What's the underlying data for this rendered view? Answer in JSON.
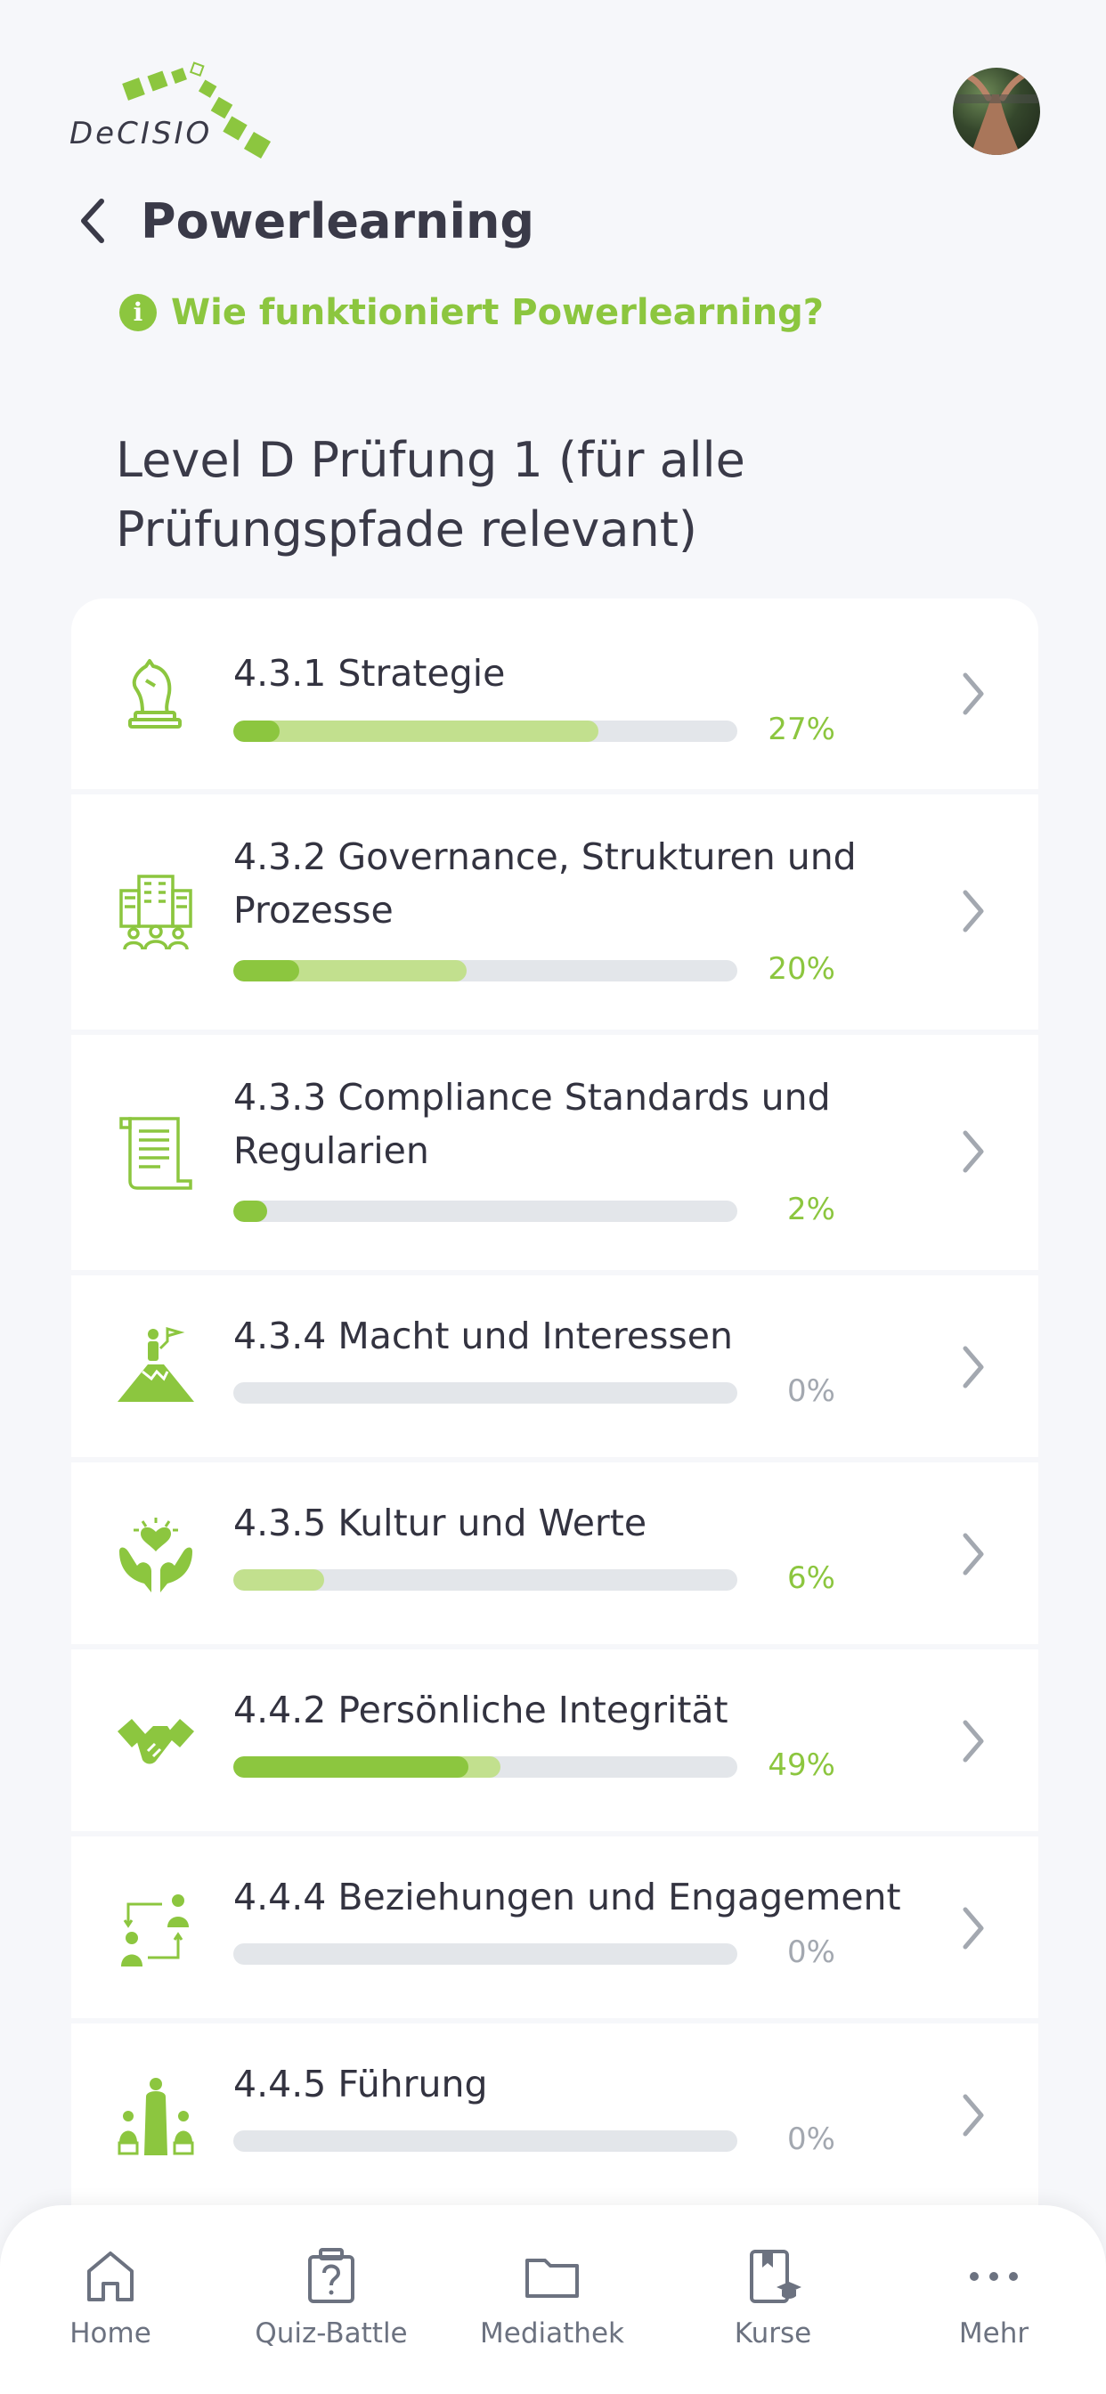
{
  "header": {
    "logo_text": "DeCISIO",
    "title": "Powerlearning",
    "info_link": "Wie funktioniert Powerlearning?"
  },
  "section": {
    "title": "Level D Prüfung 1 (für alle Prüfungspfade relevant)"
  },
  "modules": [
    {
      "label": "4.3.1 Strategie",
      "percent_text": "27%",
      "progress": 0.27,
      "icon": "chess-knight-icon"
    },
    {
      "label": "4.3.2 Governance, Strukturen und Prozesse",
      "percent_text": "20%",
      "progress": 0.2,
      "icon": "buildings-people-icon"
    },
    {
      "label": "4.3.3 Compliance Standards und Regularien",
      "percent_text": "2%",
      "progress": 0.02,
      "icon": "document-scroll-icon"
    },
    {
      "label": "4.3.4 Macht und Interessen",
      "percent_text": "0%",
      "progress": 0.0,
      "icon": "mountain-flag-icon"
    },
    {
      "label": "4.3.5 Kultur und Werte",
      "percent_text": "6%",
      "progress": 0.06,
      "icon": "hands-heart-icon"
    },
    {
      "label": "4.4.2 Persönliche Integrität",
      "percent_text": "49%",
      "progress": 0.49,
      "icon": "handshake-icon"
    },
    {
      "label": "4.4.4 Beziehungen und Engagement",
      "percent_text": "0%",
      "progress": 0.0,
      "icon": "people-exchange-icon"
    },
    {
      "label": "4.4.5 Führung",
      "percent_text": "0%",
      "progress": 0.0,
      "icon": "leader-group-icon"
    }
  ],
  "tabbar": {
    "home": "Home",
    "quiz": "Quiz-Battle",
    "mediathek": "Mediathek",
    "kurse": "Kurse",
    "mehr": "Mehr"
  },
  "colors": {
    "accent": "#8cc63f",
    "accent_light": "#c2e08e",
    "track": "#e3e6ea",
    "text": "#333340",
    "background": "#f6f7fa"
  }
}
